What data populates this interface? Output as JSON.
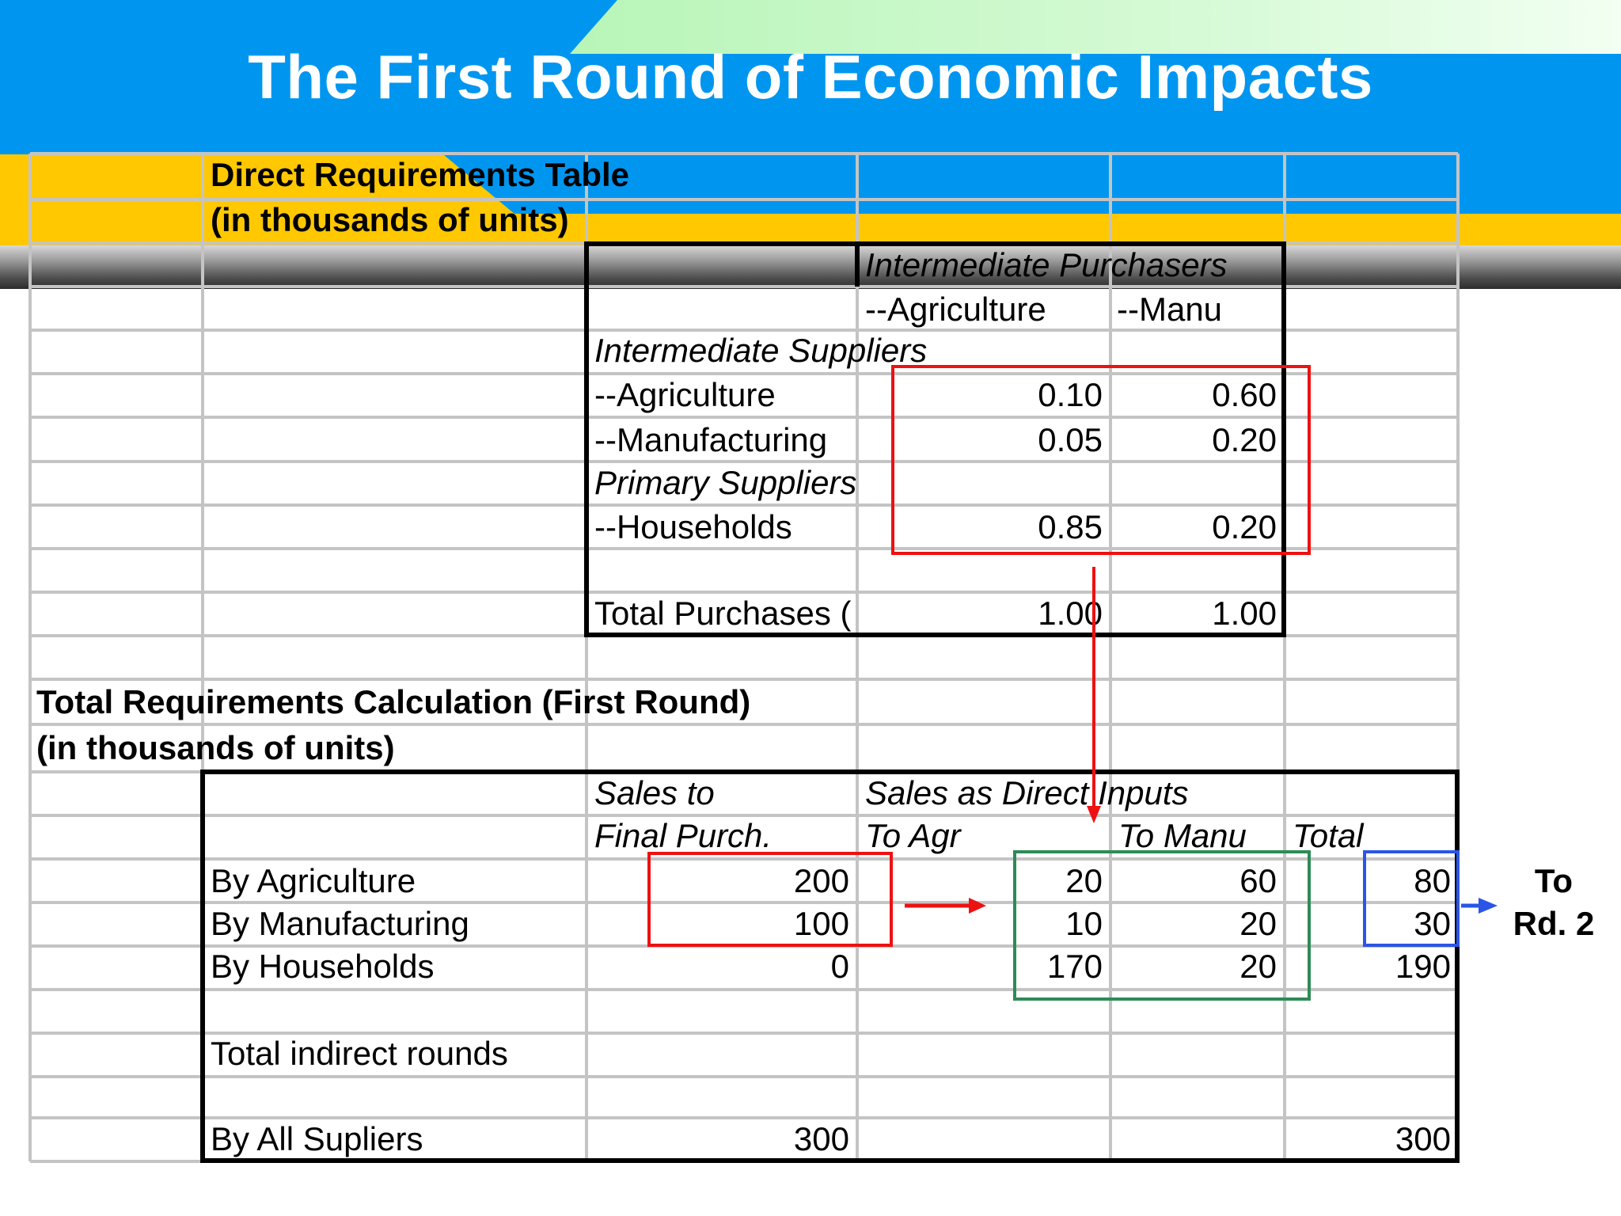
{
  "slide": {
    "title": "The First Round of Economic Impacts"
  },
  "direct_table": {
    "heading_line1": "Direct Requirements Table",
    "heading_line2": "(in thousands of units)",
    "col_group_label": "Intermediate Purchasers",
    "col_agriculture": "--Agriculture",
    "col_manu": "--Manu",
    "section_intermediate": "Intermediate Suppliers",
    "section_primary": "Primary Suppliers",
    "rows": [
      {
        "label": "--Agriculture",
        "agr": "0.10",
        "manu": "0.60"
      },
      {
        "label": "--Manufacturing",
        "agr": "0.05",
        "manu": "0.20"
      },
      {
        "label": "--Households",
        "agr": "0.85",
        "manu": "0.20"
      }
    ],
    "total": {
      "label": "Total Purchases (",
      "agr": "1.00",
      "manu": "1.00"
    }
  },
  "total_table": {
    "heading_line1": "Total Requirements Calculation (First Round)",
    "heading_line2": "(in thousands of units)",
    "col_sales_line1": "Sales to",
    "col_sales_line2": "Final Purch.",
    "col_direct_inputs": "Sales as Direct Inputs",
    "col_to_agr": "To Agr",
    "col_to_manu": "To Manu",
    "col_total": "Total",
    "rows": [
      {
        "label": "By Agriculture",
        "final": "200",
        "agr": "20",
        "manu": "60",
        "total": "80"
      },
      {
        "label": "By Manufacturing",
        "final": "100",
        "agr": "10",
        "manu": "20",
        "total": "30"
      },
      {
        "label": "By Households",
        "final": "0",
        "agr": "170",
        "manu": "20",
        "total": "190"
      }
    ],
    "indirect_label": "Total indirect rounds",
    "all_suppliers": {
      "label": "By All Supliers",
      "final": "300",
      "total": "300"
    }
  },
  "annotation": {
    "line1": "To",
    "line2": "Rd. 2"
  },
  "colors": {
    "red_box": "#ee1111",
    "green_box": "#2e8b57",
    "blue_box": "#2b55e6"
  }
}
